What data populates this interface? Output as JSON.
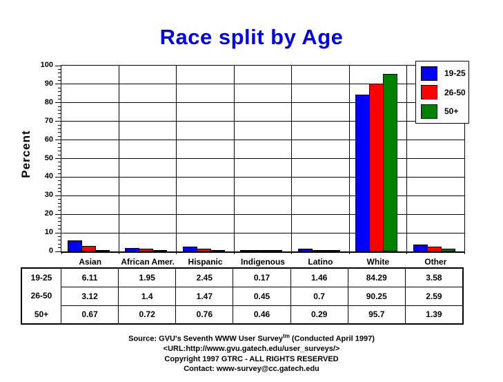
{
  "page": {
    "title_color": "#0000EE"
  },
  "chart_data": {
    "type": "bar",
    "title": "Race split by Age",
    "ylabel": "Percent",
    "xlabel": "",
    "ylim": [
      0,
      100
    ],
    "y_major_step": 10,
    "y_minor_step": 2,
    "grid": true,
    "legend_position": "top-right",
    "categories": [
      "Asian",
      "African Amer.",
      "Hispanic",
      "Indigenous",
      "Latino",
      "White",
      "Other"
    ],
    "series": [
      {
        "name": "19-25",
        "color": "#0000FF",
        "values": [
          6.11,
          1.95,
          2.45,
          0.17,
          1.46,
          84.29,
          3.58
        ],
        "display": [
          "6.11",
          "1.95",
          "2.45",
          "0.17",
          "1.46",
          "84.29",
          "3.58"
        ]
      },
      {
        "name": "26-50",
        "color": "#FF0000",
        "values": [
          3.12,
          1.4,
          1.47,
          0.45,
          0.7,
          90.25,
          2.59
        ],
        "display": [
          "3.12",
          "1.4",
          "1.47",
          "0.45",
          "0.7",
          "90.25",
          "2.59"
        ]
      },
      {
        "name": "50+",
        "color": "#008000",
        "values": [
          0.67,
          0.72,
          0.76,
          0.46,
          0.29,
          95.7,
          1.39
        ],
        "display": [
          "0.67",
          "0.72",
          "0.76",
          "0.46",
          "0.29",
          "95.7",
          "1.39"
        ]
      }
    ]
  },
  "footer": {
    "line1_prefix": "Source: GVU's Seventh WWW User Survey",
    "line1_sup": "tm",
    "line1_suffix": " (Conducted April 1997)",
    "line2": "<URL:http://www.gvu.gatech.edu/user_surveys/>",
    "line3": "Copyright 1997 GTRC - ALL RIGHTS RESERVED",
    "line4": "Contact: www-survey@cc.gatech.edu"
  }
}
